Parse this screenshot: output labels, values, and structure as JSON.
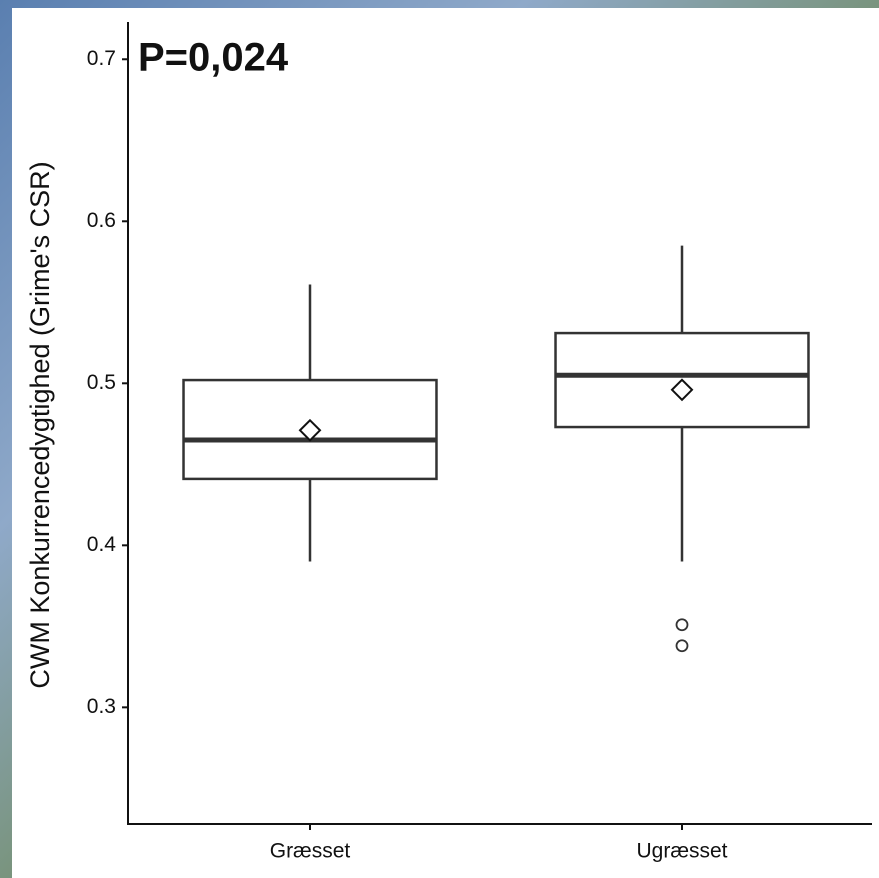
{
  "chart_data": {
    "type": "box",
    "annotation": "P=0,024",
    "y_label": "CWM Konkurrencedygtighed (Grime's CSR)",
    "categories": [
      "Græsset",
      "Ugræsset"
    ],
    "boxes": [
      {
        "low": 0.39,
        "q1": 0.441,
        "median": 0.465,
        "q3": 0.502,
        "high": 0.561,
        "mean": 0.471,
        "outliers": []
      },
      {
        "low": 0.39,
        "q1": 0.473,
        "median": 0.505,
        "q3": 0.531,
        "high": 0.585,
        "mean": 0.496,
        "outliers": [
          0.351,
          0.338
        ]
      }
    ],
    "ylim": [
      0.228,
      0.723
    ],
    "yticks": [
      0.3,
      0.4,
      0.5,
      0.6,
      0.7
    ],
    "grid": false,
    "color": "#333333"
  }
}
